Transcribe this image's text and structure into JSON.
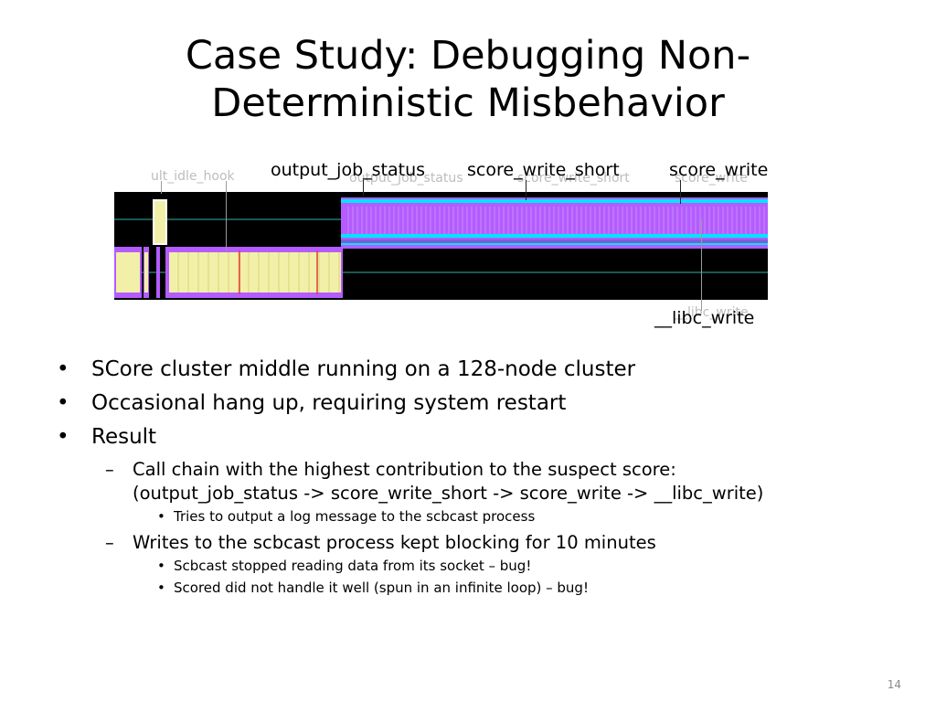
{
  "slide": {
    "title_line1": "Case Study: Debugging Non-",
    "title_line2": "Deterministic Misbehavior",
    "number": "14"
  },
  "figure": {
    "callouts": {
      "output_job_status": "output_job_status",
      "score_write_short": "score_write_short",
      "score_write": "score_write",
      "libc_write": "__libc_write"
    },
    "ghost_labels": {
      "idle_hook": "ult_idle_hook",
      "output_job_status": "output_job_status",
      "score_write_short": "score_write_short",
      "score_write": "score_write",
      "libc_write": "__libc_write"
    },
    "colors": {
      "background": "#000000",
      "idle_block": "#f2f0a8",
      "write_block": "#b45cff",
      "track_line": "#2fb3a8",
      "band": "#00e5ff"
    }
  },
  "bullets": {
    "b1": "SCore cluster middle running on a 128-node cluster",
    "b2": "Occasional hang up, requiring system restart",
    "b3": "Result",
    "b3_1_line1": "Call chain with the highest contribution to the suspect score:",
    "b3_1_line2": "(output_job_status -> score_write_short -> score_write -> __libc_write)",
    "b3_1_1": "Tries to output a log message to the scbcast process",
    "b3_2": "Writes to the scbcast process kept blocking for 10 minutes",
    "b3_2_1": "Scbcast stopped reading data from its socket – bug!",
    "b3_2_2": "Scored did not handle it well (spun in an infinite loop) – bug!",
    "dash": "–"
  }
}
